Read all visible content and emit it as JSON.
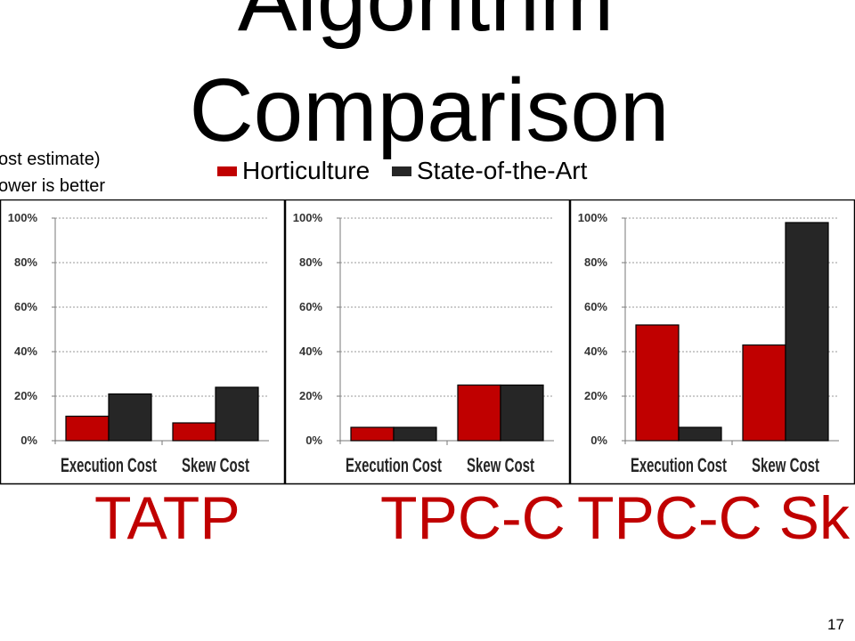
{
  "slide": {
    "title_line1": "Algorithm",
    "title_line2": "Comparison",
    "y_axis_note_line1": "ost estimate)",
    "y_axis_note_line2": "ower is better",
    "slide_number": "17"
  },
  "colors": {
    "horticulture": "#c00000",
    "state_of_the_art": "#262626",
    "panel_label": "#c00000"
  },
  "legend": [
    {
      "label": "Horticulture",
      "color": "#c00000"
    },
    {
      "label": "State-of-the-Art",
      "color": "#262626"
    }
  ],
  "chart_data": [
    {
      "type": "bar",
      "panel_label": "TATP",
      "categories": [
        "Execution Cost",
        "Skew Cost"
      ],
      "series": [
        {
          "name": "Horticulture",
          "values": [
            11,
            8
          ]
        },
        {
          "name": "State-of-the-Art",
          "values": [
            21,
            24
          ]
        }
      ],
      "yticks": [
        "0%",
        "20%",
        "40%",
        "60%",
        "80%",
        "100%"
      ],
      "ylim": [
        0,
        100
      ],
      "grid": true
    },
    {
      "type": "bar",
      "panel_label": "TPC-C",
      "categories": [
        "Execution Cost",
        "Skew Cost"
      ],
      "series": [
        {
          "name": "Horticulture",
          "values": [
            6,
            25
          ]
        },
        {
          "name": "State-of-the-Art",
          "values": [
            6,
            25
          ]
        }
      ],
      "yticks": [
        "0%",
        "20%",
        "40%",
        "60%",
        "80%",
        "100%"
      ],
      "ylim": [
        0,
        100
      ],
      "grid": true
    },
    {
      "type": "bar",
      "panel_label": "TPC-C Sk",
      "categories": [
        "Execution Cost",
        "Skew Cost"
      ],
      "series": [
        {
          "name": "Horticulture",
          "values": [
            52,
            43
          ]
        },
        {
          "name": "State-of-the-Art",
          "values": [
            6,
            98
          ]
        }
      ],
      "yticks": [
        "0%",
        "20%",
        "40%",
        "60%",
        "80%",
        "100%"
      ],
      "ylim": [
        0,
        100
      ],
      "grid": true
    }
  ]
}
